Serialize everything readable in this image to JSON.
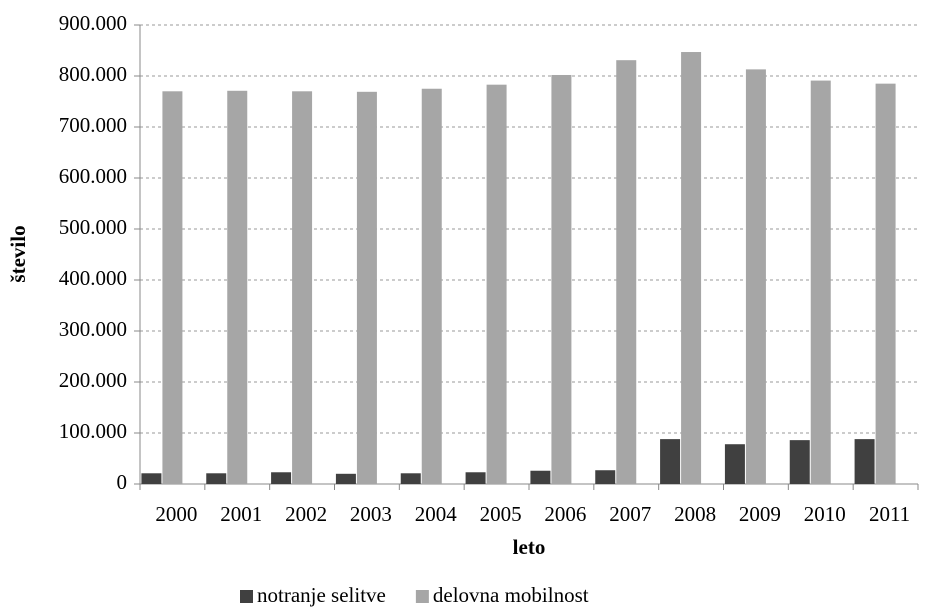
{
  "chart_data": {
    "type": "bar",
    "x_label": "leto",
    "y_label": "število",
    "categories": [
      "2000",
      "2001",
      "2002",
      "2003",
      "2004",
      "2005",
      "2006",
      "2007",
      "2008",
      "2009",
      "2010",
      "2011"
    ],
    "series": [
      {
        "name": "notranje selitve",
        "color": "#404040",
        "values": [
          21000,
          21000,
          23000,
          20000,
          21000,
          23000,
          26000,
          27000,
          88000,
          78000,
          86000,
          88000
        ]
      },
      {
        "name": "delovna mobilnost",
        "color": "#a6a6a6",
        "values": [
          770000,
          771000,
          770000,
          769000,
          775000,
          783000,
          802000,
          831000,
          847000,
          813000,
          791000,
          785000
        ]
      }
    ],
    "ylim": [
      0,
      900000
    ],
    "yticks": [
      0,
      {
        "value": 100000,
        "label": "100.000"
      },
      {
        "value": 200000,
        "label": "200.000"
      },
      {
        "value": 300000,
        "label": "300.000"
      },
      {
        "value": 400000,
        "label": "400.000"
      },
      {
        "value": 500000,
        "label": "500.000"
      },
      {
        "value": 600000,
        "label": "600.000"
      },
      {
        "value": 700000,
        "label": "700.000"
      },
      {
        "value": 800000,
        "label": "800.000"
      },
      {
        "value": 900000,
        "label": "900.000"
      }
    ],
    "grid": true,
    "legend": "bottom"
  }
}
